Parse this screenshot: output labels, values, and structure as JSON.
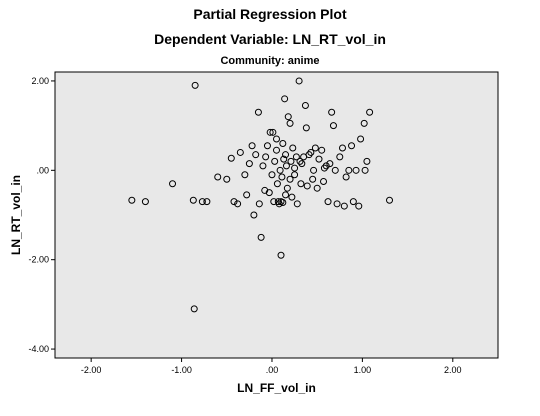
{
  "chart_data": {
    "type": "scatter",
    "title": "Partial Regression Plot",
    "subtitle": "Dependent Variable: LN_RT_vol_in",
    "annotation": "Community: anime",
    "xlabel": "LN_FF_vol_in",
    "ylabel": "LN_RT_vol_in",
    "xlim": [
      -2.4,
      2.5
    ],
    "ylim": [
      -4.2,
      2.2
    ],
    "xticks": [
      -2.0,
      -1.0,
      0.0,
      1.0,
      2.0
    ],
    "xtick_labels": [
      "-2.00",
      "-1.00",
      ".00",
      "1.00",
      "2.00"
    ],
    "yticks": [
      -4.0,
      -2.0,
      0.0,
      2.0
    ],
    "ytick_labels": [
      "-4.00",
      "-2.00",
      ".00",
      "2.00"
    ],
    "grid": false,
    "plot_background": "#e8e8e8",
    "marker": "open-circle",
    "marker_color": "#000000",
    "points": [
      [
        -1.55,
        -0.67
      ],
      [
        -1.4,
        -0.7
      ],
      [
        -1.1,
        -0.3
      ],
      [
        -0.85,
        1.9
      ],
      [
        -0.87,
        -0.67
      ],
      [
        -0.86,
        -3.1
      ],
      [
        -0.77,
        -0.7
      ],
      [
        -0.72,
        -0.7
      ],
      [
        -0.6,
        -0.15
      ],
      [
        -0.5,
        -0.2
      ],
      [
        -0.45,
        0.27
      ],
      [
        -0.42,
        -0.7
      ],
      [
        -0.38,
        -0.75
      ],
      [
        -0.3,
        -0.1
      ],
      [
        -0.25,
        0.15
      ],
      [
        -0.22,
        0.55
      ],
      [
        -0.2,
        -1.0
      ],
      [
        -0.15,
        1.3
      ],
      [
        -0.14,
        -0.75
      ],
      [
        -0.12,
        -1.5
      ],
      [
        -0.1,
        0.1
      ],
      [
        -0.08,
        -0.45
      ],
      [
        -0.07,
        0.3
      ],
      [
        -0.05,
        0.55
      ],
      [
        -0.03,
        -0.5
      ],
      [
        -0.02,
        0.85
      ],
      [
        0.0,
        -0.1
      ],
      [
        0.01,
        0.85
      ],
      [
        0.02,
        -0.7
      ],
      [
        0.03,
        0.2
      ],
      [
        0.05,
        0.45
      ],
      [
        0.06,
        -0.3
      ],
      [
        0.07,
        -0.7
      ],
      [
        0.08,
        -0.75
      ],
      [
        0.09,
        0.0
      ],
      [
        0.1,
        -0.7
      ],
      [
        0.1,
        -1.9
      ],
      [
        0.11,
        -0.15
      ],
      [
        0.12,
        -0.72
      ],
      [
        0.13,
        0.25
      ],
      [
        0.14,
        1.6
      ],
      [
        0.15,
        -0.55
      ],
      [
        0.16,
        0.1
      ],
      [
        0.17,
        -0.4
      ],
      [
        0.18,
        1.2
      ],
      [
        0.2,
        1.05
      ],
      [
        0.21,
        0.2
      ],
      [
        0.22,
        -0.6
      ],
      [
        0.23,
        0.5
      ],
      [
        0.25,
        0.05
      ],
      [
        0.27,
        0.3
      ],
      [
        0.28,
        -0.75
      ],
      [
        0.3,
        2.0
      ],
      [
        0.31,
        0.2
      ],
      [
        0.32,
        -0.3
      ],
      [
        0.33,
        0.15
      ],
      [
        0.35,
        0.3
      ],
      [
        0.37,
        1.45
      ],
      [
        0.39,
        -0.35
      ],
      [
        0.41,
        0.35
      ],
      [
        0.43,
        0.4
      ],
      [
        0.45,
        -0.2
      ],
      [
        0.46,
        0.0
      ],
      [
        0.48,
        0.5
      ],
      [
        0.5,
        -0.4
      ],
      [
        0.52,
        0.25
      ],
      [
        0.55,
        0.45
      ],
      [
        0.57,
        -0.25
      ],
      [
        0.6,
        0.1
      ],
      [
        0.62,
        -0.7
      ],
      [
        0.64,
        0.15
      ],
      [
        0.66,
        1.3
      ],
      [
        0.68,
        1.0
      ],
      [
        0.7,
        0.0
      ],
      [
        0.72,
        -0.75
      ],
      [
        0.75,
        0.3
      ],
      [
        0.78,
        0.5
      ],
      [
        0.8,
        -0.8
      ],
      [
        0.82,
        -0.15
      ],
      [
        0.85,
        0.0
      ],
      [
        0.88,
        0.55
      ],
      [
        0.9,
        -0.7
      ],
      [
        0.93,
        0.0
      ],
      [
        0.96,
        -0.8
      ],
      [
        0.98,
        0.7
      ],
      [
        1.02,
        1.05
      ],
      [
        1.03,
        0.0
      ],
      [
        1.05,
        0.2
      ],
      [
        1.08,
        1.3
      ],
      [
        1.3,
        -0.67
      ],
      [
        0.05,
        0.7
      ],
      [
        0.15,
        0.35
      ],
      [
        0.25,
        -0.1
      ],
      [
        0.38,
        0.95
      ],
      [
        -0.18,
        0.35
      ],
      [
        -0.35,
        0.4
      ],
      [
        -0.28,
        -0.55
      ],
      [
        0.58,
        0.05
      ],
      [
        0.2,
        -0.2
      ],
      [
        0.12,
        0.6
      ]
    ]
  }
}
